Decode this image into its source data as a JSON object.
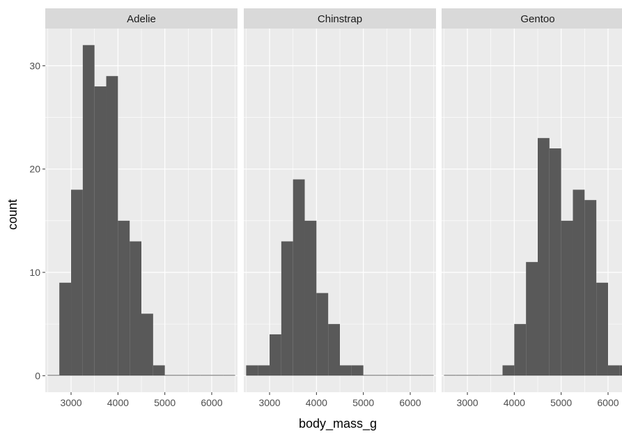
{
  "chart_data": {
    "type": "bar",
    "xlabel": "body_mass_g",
    "ylabel": "count",
    "facet_by": "species",
    "xlim": [
      2450,
      6550
    ],
    "ylim": [
      -1.6,
      33.6
    ],
    "x_ticks": [
      3000,
      4000,
      5000,
      6000
    ],
    "y_ticks": [
      0,
      10,
      20,
      30
    ],
    "bin_edges": [
      2500,
      2750,
      3000,
      3250,
      3500,
      3750,
      4000,
      4250,
      4500,
      4750,
      5000,
      5250,
      5500,
      5750,
      6000,
      6250,
      6500
    ],
    "grid": true,
    "colors": {
      "bar": "#595959",
      "panel_bg": "#ebebeb",
      "strip_bg": "#d9d9d9",
      "grid": "#ffffff"
    },
    "panels": [
      {
        "name": "Adelie",
        "counts": [
          0,
          9,
          18,
          32,
          28,
          29,
          15,
          13,
          6,
          1,
          0,
          0,
          0,
          0,
          0,
          0
        ]
      },
      {
        "name": "Chinstrap",
        "counts": [
          1,
          1,
          4,
          13,
          19,
          15,
          8,
          5,
          1,
          1,
          0,
          0,
          0,
          0,
          0,
          0
        ]
      },
      {
        "name": "Gentoo",
        "counts": [
          0,
          0,
          0,
          0,
          0,
          1,
          5,
          11,
          23,
          22,
          15,
          18,
          17,
          9,
          1,
          1
        ]
      }
    ]
  }
}
